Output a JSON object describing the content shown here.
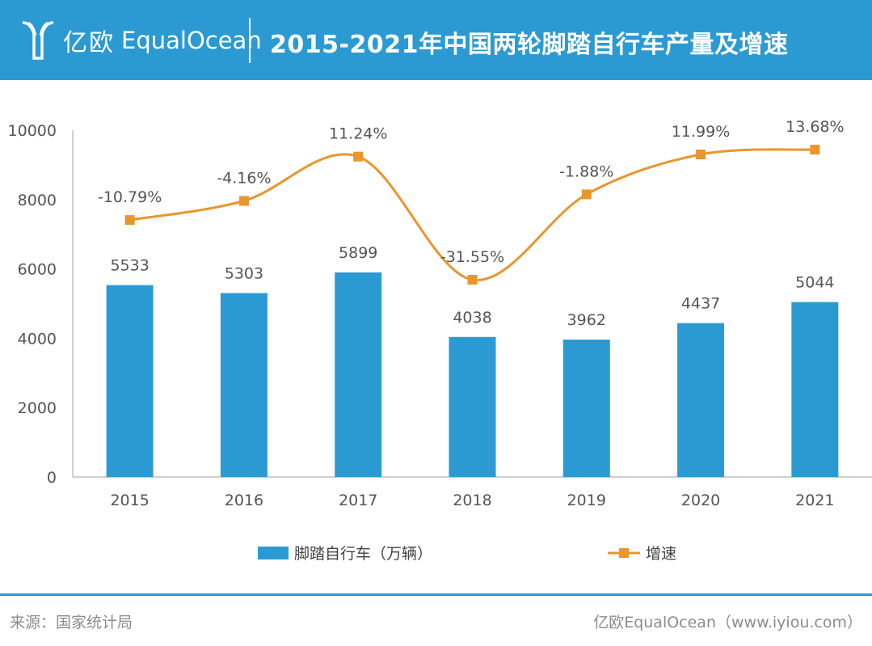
{
  "header": {
    "logo_cn": "亿欧",
    "logo_en": "EqualOcean",
    "title": "2015-2021年中国两轮脚踏自行车产量及增速"
  },
  "footer": {
    "source": "来源：国家统计局",
    "credit": "亿欧EqualOcean（www.iyiou.com）"
  },
  "colors": {
    "header_bg": "#2b9ad3",
    "bar": "#2b9ad3",
    "line": "#e8962e"
  },
  "chart_data": {
    "type": "bar",
    "title": "2015-2021年中国两轮脚踏自行车产量及增速",
    "categories": [
      "2015",
      "2016",
      "2017",
      "2018",
      "2019",
      "2020",
      "2021"
    ],
    "ylim": [
      0,
      10000
    ],
    "yticks": [
      "0",
      "2000",
      "4000",
      "6000",
      "8000",
      "10000"
    ],
    "series": [
      {
        "name": "脚踏自行车（万辆）",
        "kind": "bar",
        "values": [
          5533,
          5303,
          5899,
          4038,
          3962,
          4437,
          5044
        ],
        "labels": [
          "5533",
          "5303",
          "5899",
          "4038",
          "3962",
          "4437",
          "5044"
        ]
      },
      {
        "name": "增速",
        "kind": "line",
        "values": [
          -10.79,
          -4.16,
          11.24,
          -31.55,
          -1.88,
          11.99,
          13.68
        ],
        "labels": [
          "-10.79%",
          "-4.16%",
          "11.24%",
          "-31.55%",
          "-1.88%",
          "11.99%",
          "13.68%"
        ]
      }
    ],
    "legend_position": "bottom",
    "grid": false
  }
}
